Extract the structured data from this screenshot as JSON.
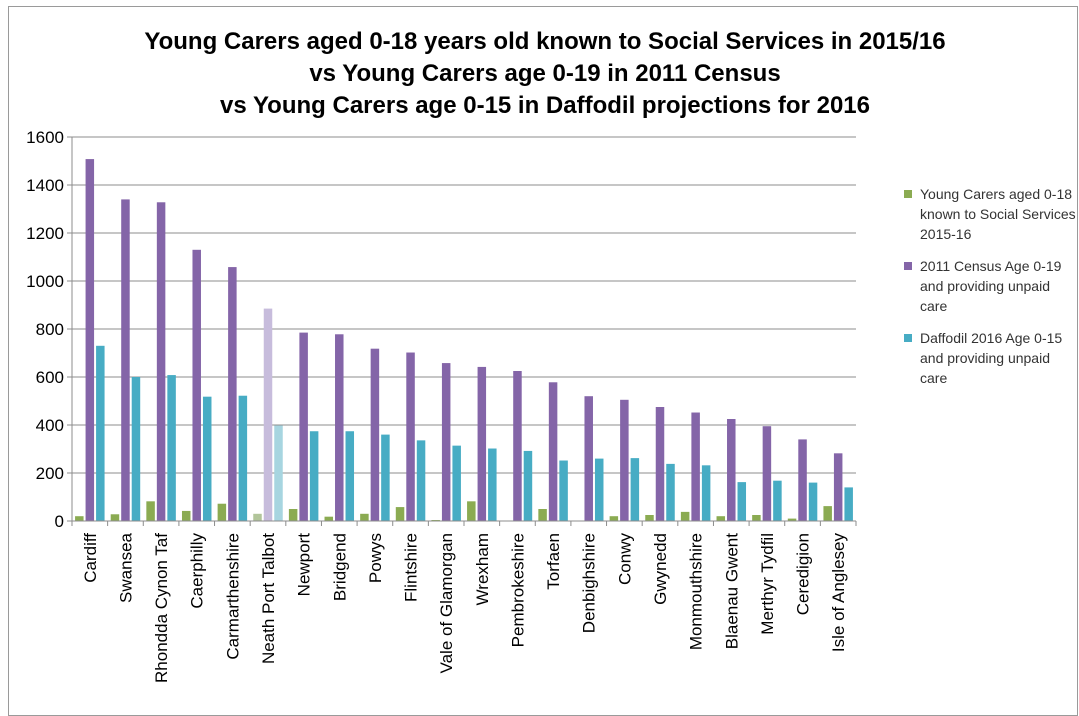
{
  "chart_data": {
    "type": "bar",
    "title": [
      "Young Carers aged 0-18 years old known to Social Services in 2015/16",
      "vs Young Carers age 0-19 in 2011 Census",
      "vs Young Carers age 0-15 in Daffodil projections for 2016"
    ],
    "xlabel": "",
    "ylabel": "",
    "ylim": [
      0,
      1600
    ],
    "yticks": [
      0,
      200,
      400,
      600,
      800,
      1000,
      1200,
      1400,
      1600
    ],
    "grid": true,
    "legend_position": "right",
    "categories": [
      "Cardiff",
      "Swansea",
      "Rhondda Cynon Taf",
      "Caerphilly",
      "Carmarthenshire",
      "Neath Port Talbot",
      "Newport",
      "Bridgend",
      "Powys",
      "Flintshire",
      "Vale of Glamorgan",
      "Wrexham",
      "Pembrokeshire",
      "Torfaen",
      "Denbighshire",
      "Conwy",
      "Gwynedd",
      "Monmouthshire",
      "Blaenau Gwent",
      "Merthyr Tydfil",
      "Ceredigion",
      "Isle of Anglesey"
    ],
    "series": [
      {
        "name": "Young Carers aged 0-18 known to Social Services 2015-16",
        "color": "#8bab52",
        "values": [
          20,
          28,
          82,
          42,
          72,
          30,
          50,
          18,
          30,
          58,
          4,
          82,
          2,
          50,
          0,
          20,
          25,
          38,
          20,
          25,
          10,
          62
        ]
      },
      {
        "name": "2011 Census Age 0-19 and providing unpaid care",
        "color": "#8465a8",
        "values": [
          1508,
          1340,
          1328,
          1130,
          1058,
          885,
          785,
          778,
          718,
          702,
          658,
          642,
          625,
          578,
          520,
          505,
          475,
          452,
          425,
          395,
          340,
          282
        ]
      },
      {
        "name": "Daffodil 2016 Age 0-15 and providing unpaid care",
        "color": "#47acc4",
        "values": [
          730,
          600,
          608,
          518,
          522,
          398,
          374,
          374,
          360,
          336,
          314,
          302,
          292,
          252,
          260,
          262,
          238,
          232,
          162,
          168,
          160,
          140
        ]
      }
    ]
  }
}
